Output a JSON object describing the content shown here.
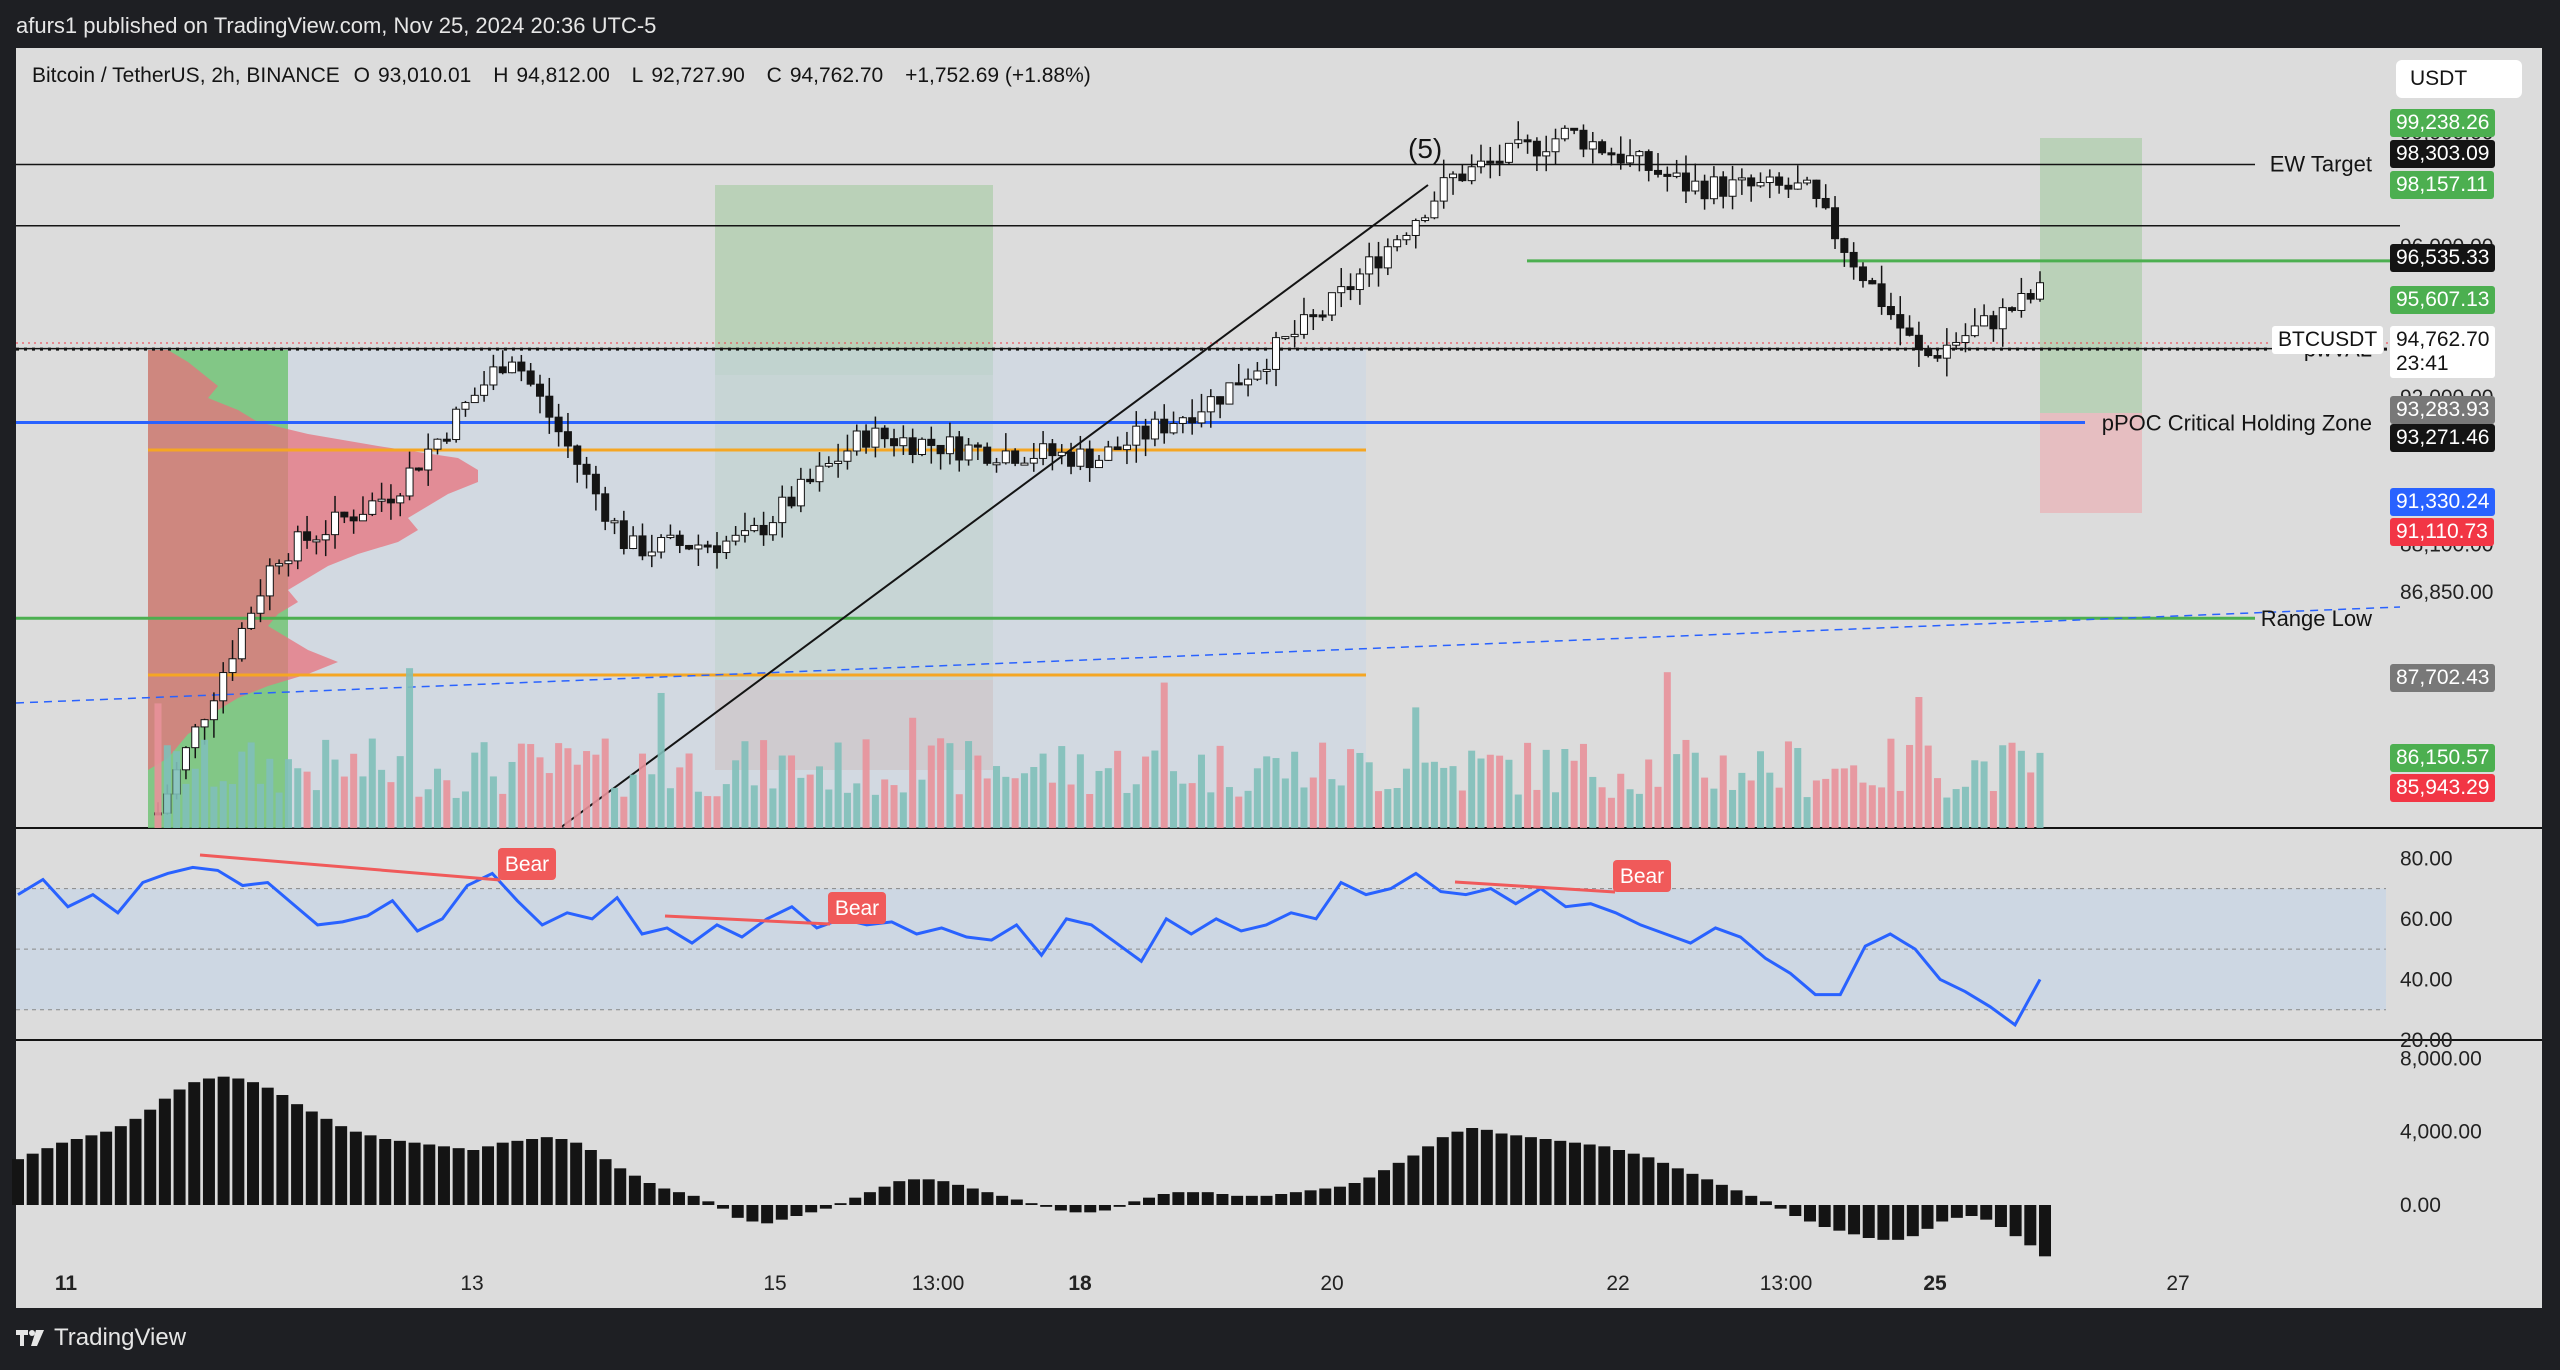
{
  "header": {
    "published": "afurs1 published on TradingView.com, Nov 25, 2024 20:36 UTC-5"
  },
  "symbol": {
    "title": "Bitcoin / TetherUS, 2h, BINANCE",
    "open_label": "O",
    "open": "93,010.01",
    "high_label": "H",
    "high": "94,812.00",
    "low_label": "L",
    "low": "92,727.90",
    "close_label": "C",
    "close": "94,762.70",
    "change": "+1,752.69 (+1.88%)"
  },
  "currency": "USDT",
  "footer": {
    "brand": "TradingView"
  },
  "colors": {
    "bull": "#7fbfb9",
    "bear": "#e8919a",
    "green_line": "#4caf50",
    "blue_line": "#2962ff",
    "orange_line": "#f5a623",
    "rsi_line": "#2962ff",
    "rsi_div": "#f05a5a"
  },
  "chart_data": [
    {
      "type": "candlestick",
      "title": "Bitcoin / TetherUS, 2h, BINANCE",
      "x_ticks": [
        "11",
        "13",
        "15",
        "13:00",
        "18",
        "20",
        "22",
        "13:00",
        "25",
        "27"
      ],
      "y_ticks": [
        "99,000.00",
        "96,000.00",
        "92,000.00",
        "89,300.00",
        "88,100.00",
        "86,850.00"
      ],
      "close_path_approx": [
        {
          "x": "Nov 11",
          "y": 81000
        },
        {
          "x": "Nov 12",
          "y": 87800
        },
        {
          "x": "Nov 13",
          "y": 89500
        },
        {
          "x": "Nov 13 12:00",
          "y": 93200
        },
        {
          "x": "Nov 14",
          "y": 88000
        },
        {
          "x": "Nov 15",
          "y": 88200
        },
        {
          "x": "Nov 16",
          "y": 91000
        },
        {
          "x": "Nov 17",
          "y": 90600
        },
        {
          "x": "Nov 18",
          "y": 90400
        },
        {
          "x": "Nov 19",
          "y": 92000
        },
        {
          "x": "Nov 20",
          "y": 94500
        },
        {
          "x": "Nov 21",
          "y": 97800
        },
        {
          "x": "Nov 22",
          "y": 99000
        },
        {
          "x": "Nov 23",
          "y": 97600
        },
        {
          "x": "Nov 24",
          "y": 97500
        },
        {
          "x": "Nov 25",
          "y": 93000
        },
        {
          "x": "Nov 25 20:00",
          "y": 94762.7
        }
      ],
      "levels": [
        {
          "name": "EW Target",
          "price": 98157.11,
          "color": "#4caf50"
        },
        {
          "name": "",
          "price": 96535.33,
          "color": "#141414"
        },
        {
          "name": "",
          "price": 95607.13,
          "color": "#4caf50"
        },
        {
          "name": "pwVAL",
          "price": 93283.93,
          "color": "#555555"
        },
        {
          "name": "",
          "price": 93271.46,
          "color": "#141414"
        },
        {
          "name": "pPOC Critical Holding Zone",
          "price": 91330.24,
          "color": "#2962ff"
        },
        {
          "name": "",
          "price": 91110.73,
          "color": "#f23645"
        },
        {
          "name": "",
          "price": 87702.43,
          "color": "#787878"
        },
        {
          "name": "Range Low",
          "price": 86150.57,
          "color": "#4caf50"
        },
        {
          "name": "",
          "price": 85943.29,
          "color": "#f23645"
        }
      ],
      "price_tags": [
        {
          "label": "",
          "value": "99,238.26",
          "bg": "#4caf50",
          "fg": "#ffffff"
        },
        {
          "label": "",
          "value": "98,303.09",
          "bg": "#141414",
          "fg": "#ffffff"
        },
        {
          "label": "EW Target",
          "value": "98,157.11",
          "bg": "#4caf50",
          "fg": "#ffffff"
        },
        {
          "label": "",
          "value": "96,535.33",
          "bg": "#141414",
          "fg": "#ffffff"
        },
        {
          "label": "",
          "value": "95,607.13",
          "bg": "#4caf50",
          "fg": "#ffffff"
        },
        {
          "label": "BTCUSDT",
          "value": "94,762.70",
          "bg": "#ffffff",
          "fg": "#141414",
          "sub": "23:41"
        },
        {
          "label": "pwVAL",
          "value": "93,283.93",
          "bg": "#787878",
          "fg": "#ffffff"
        },
        {
          "label": "",
          "value": "93,271.46",
          "bg": "#141414",
          "fg": "#ffffff"
        },
        {
          "label": "pPOC Critical Holding Zone",
          "value": "91,330.24",
          "bg": "#2962ff",
          "fg": "#ffffff"
        },
        {
          "label": "",
          "value": "91,110.73",
          "bg": "#f23645",
          "fg": "#ffffff"
        },
        {
          "label": "",
          "value": "87,702.43",
          "bg": "#787878",
          "fg": "#ffffff"
        },
        {
          "label": "Range Low",
          "value": "86,150.57",
          "bg": "#4caf50",
          "fg": "#ffffff"
        },
        {
          "label": "",
          "value": "85,943.29",
          "bg": "#f23645",
          "fg": "#ffffff"
        }
      ],
      "annotations": [
        {
          "text": "(5)",
          "type": "wave-label"
        },
        {
          "text": "EW Target",
          "type": "level-label"
        },
        {
          "text": "pwVAL",
          "type": "level-label"
        },
        {
          "text": "pPOC Critical Holding Zone",
          "type": "level-label"
        },
        {
          "text": "Range Low",
          "type": "level-label"
        }
      ],
      "grid": false
    },
    {
      "type": "line",
      "title": "",
      "y_ticks": [
        "80.00",
        "60.00",
        "40.00",
        "20.00"
      ],
      "ylim": [
        20,
        90
      ],
      "band": [
        30,
        70
      ],
      "values": [
        68,
        73,
        64,
        68,
        62,
        72,
        75,
        77,
        76,
        71,
        72,
        65,
        58,
        59,
        61,
        66,
        56,
        60,
        71,
        75,
        66,
        58,
        62,
        60,
        67,
        55,
        57,
        52,
        58,
        54,
        60,
        64,
        57,
        60,
        58,
        59,
        55,
        57,
        54,
        53,
        58,
        48,
        60,
        58,
        52,
        46,
        60,
        55,
        60,
        56,
        58,
        62,
        60,
        72,
        68,
        70,
        75,
        69,
        68,
        70,
        65,
        70,
        64,
        65,
        62,
        58,
        55,
        52,
        57,
        54,
        47,
        42,
        35,
        35,
        51,
        55,
        50,
        40,
        36,
        31,
        25,
        40
      ],
      "divergences": [
        {
          "label": "Bear"
        },
        {
          "label": "Bear"
        },
        {
          "label": "Bear"
        }
      ]
    },
    {
      "type": "bar",
      "title": "",
      "y_ticks": [
        "8,000.00",
        "4,000.00",
        "0.00"
      ],
      "ylim": [
        -3000,
        9000
      ],
      "values": [
        2500,
        2800,
        3100,
        3400,
        3600,
        3800,
        4000,
        4300,
        4700,
        5200,
        5800,
        6300,
        6700,
        6900,
        7000,
        6900,
        6700,
        6400,
        6000,
        5500,
        5100,
        4700,
        4300,
        4000,
        3800,
        3600,
        3500,
        3400,
        3300,
        3200,
        3100,
        3000,
        3200,
        3400,
        3500,
        3600,
        3700,
        3600,
        3400,
        3000,
        2500,
        2000,
        1600,
        1200,
        900,
        700,
        500,
        200,
        -200,
        -700,
        -900,
        -1000,
        -800,
        -600,
        -400,
        -200,
        100,
        400,
        700,
        1000,
        1300,
        1400,
        1400,
        1300,
        1100,
        900,
        700,
        500,
        300,
        100,
        -100,
        -300,
        -400,
        -400,
        -300,
        -100,
        200,
        400,
        600,
        700,
        700,
        700,
        600,
        500,
        500,
        500,
        600,
        700,
        800,
        900,
        1000,
        1200,
        1500,
        1900,
        2300,
        2700,
        3200,
        3700,
        4000,
        4200,
        4100,
        3900,
        3800,
        3700,
        3600,
        3500,
        3400,
        3300,
        3200,
        3000,
        2800,
        2600,
        2300,
        2000,
        1700,
        1400,
        1100,
        800,
        500,
        200,
        -200,
        -600,
        -900,
        -1200,
        -1400,
        -1600,
        -1800,
        -1900,
        -1900,
        -1700,
        -1300,
        -900,
        -700,
        -600,
        -800,
        -1200,
        -1700,
        -2200,
        -2800
      ]
    }
  ]
}
